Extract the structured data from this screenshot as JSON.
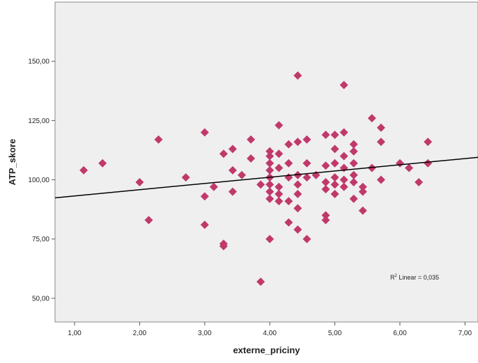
{
  "chart_data": {
    "type": "scatter",
    "xlabel": "externe_priciny",
    "ylabel": "ATP_skore",
    "xlim": [
      0.7,
      7.2
    ],
    "ylim": [
      40,
      175
    ],
    "x_ticks": [
      {
        "value": 1,
        "label": "1,00"
      },
      {
        "value": 2,
        "label": "2,00"
      },
      {
        "value": 3,
        "label": "3,00"
      },
      {
        "value": 4,
        "label": "4,00"
      },
      {
        "value": 5,
        "label": "5,00"
      },
      {
        "value": 6,
        "label": "6,00"
      },
      {
        "value": 7,
        "label": "7,00"
      }
    ],
    "y_ticks": [
      {
        "value": 50,
        "label": "50,00"
      },
      {
        "value": 75,
        "label": "75,00"
      },
      {
        "value": 100,
        "label": "100,00"
      },
      {
        "value": 125,
        "label": "125,00"
      },
      {
        "value": 150,
        "label": "150,00"
      }
    ],
    "points": [
      [
        1.14,
        104
      ],
      [
        1.43,
        107
      ],
      [
        2.0,
        99
      ],
      [
        2.14,
        83
      ],
      [
        2.29,
        117
      ],
      [
        2.71,
        101
      ],
      [
        3.0,
        120
      ],
      [
        3.0,
        93
      ],
      [
        3.0,
        81
      ],
      [
        3.14,
        97
      ],
      [
        3.29,
        111
      ],
      [
        3.29,
        73
      ],
      [
        3.29,
        72
      ],
      [
        3.43,
        113
      ],
      [
        3.43,
        104
      ],
      [
        3.43,
        95
      ],
      [
        3.57,
        102
      ],
      [
        3.71,
        117
      ],
      [
        3.71,
        109
      ],
      [
        3.86,
        98
      ],
      [
        3.86,
        57
      ],
      [
        4.0,
        112
      ],
      [
        4.0,
        110
      ],
      [
        4.0,
        107
      ],
      [
        4.0,
        104
      ],
      [
        4.0,
        101
      ],
      [
        4.0,
        98
      ],
      [
        4.0,
        95
      ],
      [
        4.0,
        92
      ],
      [
        4.0,
        75
      ],
      [
        4.14,
        123
      ],
      [
        4.14,
        111
      ],
      [
        4.14,
        105
      ],
      [
        4.14,
        97
      ],
      [
        4.14,
        94
      ],
      [
        4.14,
        91
      ],
      [
        4.29,
        115
      ],
      [
        4.29,
        107
      ],
      [
        4.29,
        101
      ],
      [
        4.29,
        91
      ],
      [
        4.29,
        82
      ],
      [
        4.43,
        144
      ],
      [
        4.43,
        116
      ],
      [
        4.43,
        102
      ],
      [
        4.43,
        98
      ],
      [
        4.43,
        94
      ],
      [
        4.43,
        88
      ],
      [
        4.43,
        79
      ],
      [
        4.57,
        117
      ],
      [
        4.57,
        107
      ],
      [
        4.57,
        101
      ],
      [
        4.57,
        75
      ],
      [
        4.71,
        102
      ],
      [
        4.86,
        119
      ],
      [
        4.86,
        106
      ],
      [
        4.86,
        99
      ],
      [
        4.86,
        96
      ],
      [
        4.86,
        85
      ],
      [
        4.86,
        83
      ],
      [
        5.0,
        119
      ],
      [
        5.0,
        113
      ],
      [
        5.0,
        107
      ],
      [
        5.0,
        101
      ],
      [
        5.0,
        98
      ],
      [
        5.0,
        94
      ],
      [
        5.14,
        140
      ],
      [
        5.14,
        120
      ],
      [
        5.14,
        110
      ],
      [
        5.14,
        105
      ],
      [
        5.14,
        100
      ],
      [
        5.14,
        97
      ],
      [
        5.29,
        115
      ],
      [
        5.29,
        112
      ],
      [
        5.29,
        107
      ],
      [
        5.29,
        102
      ],
      [
        5.29,
        99
      ],
      [
        5.29,
        92
      ],
      [
        5.43,
        97
      ],
      [
        5.43,
        95
      ],
      [
        5.43,
        87
      ],
      [
        5.57,
        126
      ],
      [
        5.57,
        105
      ],
      [
        5.71,
        122
      ],
      [
        5.71,
        116
      ],
      [
        5.71,
        100
      ],
      [
        6.0,
        107
      ],
      [
        6.14,
        105
      ],
      [
        6.29,
        99
      ],
      [
        6.43,
        116
      ],
      [
        6.43,
        107
      ]
    ],
    "fit_line": {
      "x": [
        0.7,
        7.2
      ],
      "y": [
        92.4,
        109.5
      ]
    },
    "annotation": {
      "prefix": "R",
      "superscript": "2",
      "suffix": " Linear = 0,035"
    },
    "grid": false,
    "colors": {
      "point": "#c0396b",
      "plot_bg": "#efefef",
      "line": "#000000"
    }
  }
}
